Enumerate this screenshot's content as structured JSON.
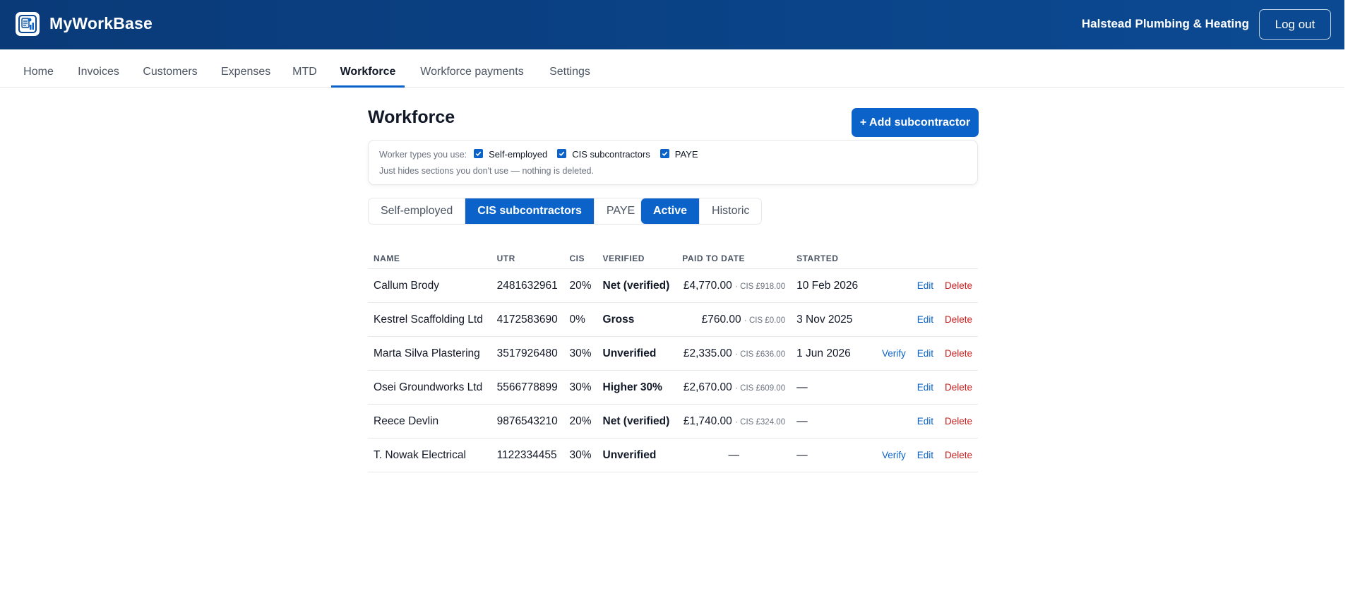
{
  "header": {
    "brand": "MyWorkBase",
    "company": "Halstead Plumbing & Heating",
    "logout_label": "Log out",
    "logo_icon": "app-logo-icon",
    "accent": "#0b63c9"
  },
  "nav": {
    "items": [
      {
        "label": "Home"
      },
      {
        "label": "Invoices"
      },
      {
        "label": "Customers"
      },
      {
        "label": "Expenses"
      },
      {
        "label": "MTD"
      },
      {
        "label": "Workforce"
      },
      {
        "label": "Workforce payments"
      },
      {
        "label": "Settings"
      }
    ],
    "active": "Workforce"
  },
  "page": {
    "title": "Workforce",
    "add_button": "+ Add subcontractor"
  },
  "worker_types": {
    "label": "Worker types you use:",
    "options": [
      {
        "label": "Self-employed",
        "checked": true
      },
      {
        "label": "CIS subcontractors",
        "checked": true
      },
      {
        "label": "PAYE",
        "checked": true
      }
    ],
    "note": "Just hides sections you don't use — nothing is deleted."
  },
  "segments": {
    "types": [
      "Self-employed",
      "CIS subcontractors",
      "PAYE"
    ],
    "types_selected": "CIS subcontractors",
    "status": [
      "Active",
      "Historic"
    ],
    "status_selected": "Active"
  },
  "table": {
    "columns": [
      "NAME",
      "UTR",
      "CIS",
      "VERIFIED",
      "PAID TO DATE",
      "STARTED"
    ],
    "rows": [
      {
        "name": "Callum Brody",
        "utr": "2481632961",
        "cis": "20%",
        "verified": "Net (verified)",
        "status": "net",
        "paid": "£4,770.00",
        "cis_paid": "· CIS £918.00",
        "started": "10 Feb 2026",
        "actions": [
          "Edit",
          "Delete"
        ]
      },
      {
        "name": "Kestrel Scaffolding Ltd",
        "utr": "4172583690",
        "cis": "0%",
        "verified": "Gross",
        "status": "gross",
        "paid": "£760.00",
        "cis_paid": "· CIS £0.00",
        "started": "3 Nov 2025",
        "actions": [
          "Edit",
          "Delete"
        ]
      },
      {
        "name": "Marta Silva Plastering",
        "utr": "3517926480",
        "cis": "30%",
        "verified": "Unverified",
        "status": "unv",
        "paid": "£2,335.00",
        "cis_paid": "· CIS £636.00",
        "started": "1 Jun 2026",
        "actions": [
          "Verify",
          "Edit",
          "Delete"
        ]
      },
      {
        "name": "Osei Groundworks Ltd",
        "utr": "5566778899",
        "cis": "30%",
        "verified": "Higher 30%",
        "status": "high",
        "paid": "£2,670.00",
        "cis_paid": "· CIS £609.00",
        "started": "—",
        "actions": [
          "Edit",
          "Delete"
        ]
      },
      {
        "name": "Reece Devlin",
        "utr": "9876543210",
        "cis": "20%",
        "verified": "Net (verified)",
        "status": "net",
        "paid": "£1,740.00",
        "cis_paid": "· CIS £324.00",
        "started": "—",
        "actions": [
          "Edit",
          "Delete"
        ]
      },
      {
        "name": "T. Nowak Electrical",
        "utr": "1122334455",
        "cis": "30%",
        "verified": "Unverified",
        "status": "unv",
        "paid": "—",
        "cis_paid": "",
        "started": "—",
        "actions": [
          "Verify",
          "Edit",
          "Delete"
        ]
      }
    ]
  }
}
